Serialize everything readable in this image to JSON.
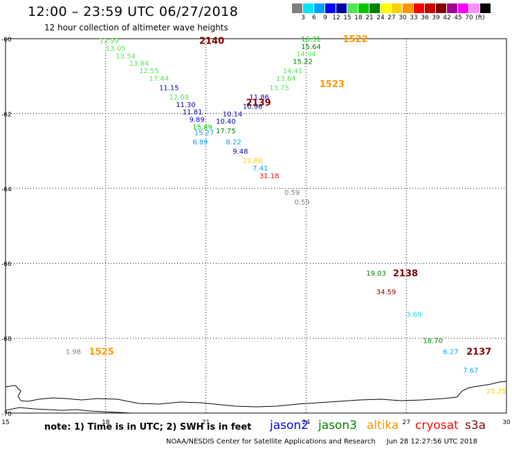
{
  "header": {
    "title": "12:00 – 23:59 UTC 06/27/2018",
    "subtitle": "12 hour collection of altimeter wave heights"
  },
  "legend": {
    "colors": [
      "#808080",
      "#00e5ff",
      "#00a0ff",
      "#0000ff",
      "#0000a0",
      "#50e850",
      "#00c800",
      "#008000",
      "#ffff00",
      "#ffd000",
      "#ff9600",
      "#ff0000",
      "#c80000",
      "#800000",
      "#a00090",
      "#ff00ff",
      "#ff90ff",
      "#000000"
    ],
    "labels": [
      "3",
      "6",
      "9",
      "12",
      "15",
      "18",
      "21",
      "24",
      "27",
      "30",
      "33",
      "36",
      "39",
      "42",
      "45",
      "70",
      "(ft)"
    ]
  },
  "map": {
    "lat_ticks": [
      "-60",
      "-62",
      "-64",
      "-66",
      "-68",
      "-70"
    ],
    "lon_ticks": [
      "15",
      "18",
      "21",
      "24",
      "27",
      "30"
    ],
    "lon_range": [
      15,
      30
    ],
    "lat_range": [
      -60,
      -70
    ]
  },
  "tracks": [
    {
      "label": "2140",
      "color": "#800000",
      "lon": 20.8,
      "lat": -60.05
    },
    {
      "label": "2139",
      "color": "#800000",
      "lon": 22.2,
      "lat": -61.7
    },
    {
      "label": "2138",
      "color": "#800000",
      "lon": 26.6,
      "lat": -66.25
    },
    {
      "label": "2137",
      "color": "#800000",
      "lon": 28.8,
      "lat": -68.35
    },
    {
      "label": "1522",
      "color": "#ff9600",
      "lon": 25.1,
      "lat": -60.0
    },
    {
      "label": "1523",
      "color": "#ff9600",
      "lon": 24.4,
      "lat": -61.2
    },
    {
      "label": "1525",
      "color": "#ff9600",
      "lon": 17.5,
      "lat": -68.35
    }
  ],
  "points": [
    {
      "v": "13.99",
      "c": "#50e850",
      "lon": 17.8,
      "lat": -60.05
    },
    {
      "v": "13.05",
      "c": "#50e850",
      "lon": 18.0,
      "lat": -60.25
    },
    {
      "v": "13.54",
      "c": "#50e850",
      "lon": 18.3,
      "lat": -60.45
    },
    {
      "v": "13.84",
      "c": "#50e850",
      "lon": 18.7,
      "lat": -60.65
    },
    {
      "v": "12.55",
      "c": "#50e850",
      "lon": 19.0,
      "lat": -60.85
    },
    {
      "v": "17.44",
      "c": "#50e850",
      "lon": 19.3,
      "lat": -61.05
    },
    {
      "v": "11.15",
      "c": "#0000a0",
      "lon": 19.6,
      "lat": -61.3
    },
    {
      "v": "12.08",
      "c": "#50e850",
      "lon": 19.9,
      "lat": -61.55
    },
    {
      "v": "11.30",
      "c": "#0000a0",
      "lon": 20.1,
      "lat": -61.75
    },
    {
      "v": "11.81",
      "c": "#0000a0",
      "lon": 20.3,
      "lat": -61.95
    },
    {
      "v": "9.89",
      "c": "#0000ff",
      "lon": 20.5,
      "lat": -62.15
    },
    {
      "v": "15.89",
      "c": "#00c800",
      "lon": 20.6,
      "lat": -62.35
    },
    {
      "v": "15.27",
      "c": "#00a0ff",
      "lon": 20.65,
      "lat": -62.5
    },
    {
      "v": "6.89",
      "c": "#00a0ff",
      "lon": 20.6,
      "lat": -62.75
    },
    {
      "v": "16.31",
      "c": "#00c800",
      "lon": 23.85,
      "lat": -60.0
    },
    {
      "v": "15.64",
      "c": "#008000",
      "lon": 23.85,
      "lat": -60.2
    },
    {
      "v": "14.94",
      "c": "#50e850",
      "lon": 23.7,
      "lat": -60.4
    },
    {
      "v": "15.22",
      "c": "#008000",
      "lon": 23.6,
      "lat": -60.6
    },
    {
      "v": "14.41",
      "c": "#50e850",
      "lon": 23.3,
      "lat": -60.85
    },
    {
      "v": "13.64",
      "c": "#50e850",
      "lon": 23.1,
      "lat": -61.05
    },
    {
      "v": "13.75",
      "c": "#50e850",
      "lon": 22.9,
      "lat": -61.3
    },
    {
      "v": "11.86",
      "c": "#0000a0",
      "lon": 22.3,
      "lat": -61.55
    },
    {
      "v": "10.96",
      "c": "#0000a0",
      "lon": 22.1,
      "lat": -61.8
    },
    {
      "v": "10.14",
      "c": "#0000a0",
      "lon": 21.5,
      "lat": -62.0
    },
    {
      "v": "10.40",
      "c": "#0000a0",
      "lon": 21.3,
      "lat": -62.2
    },
    {
      "v": "17.75",
      "c": "#008000",
      "lon": 21.3,
      "lat": -62.45
    },
    {
      "v": "8.22",
      "c": "#00a0ff",
      "lon": 21.6,
      "lat": -62.75
    },
    {
      "v": "9.48",
      "c": "#0000a0",
      "lon": 21.8,
      "lat": -63.0
    },
    {
      "v": "22.86",
      "c": "#ffd000",
      "lon": 22.1,
      "lat": -63.25
    },
    {
      "v": "7.41",
      "c": "#00a0ff",
      "lon": 22.4,
      "lat": -63.45
    },
    {
      "v": "31.18",
      "c": "#ff0000",
      "lon": 22.6,
      "lat": -63.65
    },
    {
      "v": "0.59",
      "c": "#808080",
      "lon": 23.35,
      "lat": -64.1
    },
    {
      "v": "0.59",
      "c": "#808080",
      "lon": 23.65,
      "lat": -64.35
    },
    {
      "v": "19.03",
      "c": "#008000",
      "lon": 25.8,
      "lat": -66.25
    },
    {
      "v": "34.59",
      "c": "#800000",
      "lon": 26.1,
      "lat": -66.75
    },
    {
      "v": "3.69",
      "c": "#00e5ff",
      "lon": 27.0,
      "lat": -67.35
    },
    {
      "v": "18.70",
      "c": "#008000",
      "lon": 27.5,
      "lat": -68.05
    },
    {
      "v": "6.27",
      "c": "#00a0ff",
      "lon": 28.1,
      "lat": -68.35
    },
    {
      "v": "7.67",
      "c": "#00a0ff",
      "lon": 28.7,
      "lat": -68.85
    },
    {
      "v": "25.25",
      "c": "#ffd000",
      "lon": 29.4,
      "lat": -69.4
    },
    {
      "v": "1.98",
      "c": "#808080",
      "lon": 16.8,
      "lat": -68.35
    }
  ],
  "footer": {
    "note": "note: 1) Time is in UTC; 2) SWH is in feet",
    "satellites": [
      {
        "name": "jason2",
        "color": "#0000ff"
      },
      {
        "name": "jason3",
        "color": "#008000"
      },
      {
        "name": "altika",
        "color": "#ff9600"
      },
      {
        "name": "cryosat",
        "color": "#ff0000"
      },
      {
        "name": "s3a",
        "color": "#800000"
      }
    ],
    "credit": "NOAA/NESDIS Center for Satellite Applications and Research",
    "timestamp": "Jun 28 12:27:56 UTC 2018"
  }
}
